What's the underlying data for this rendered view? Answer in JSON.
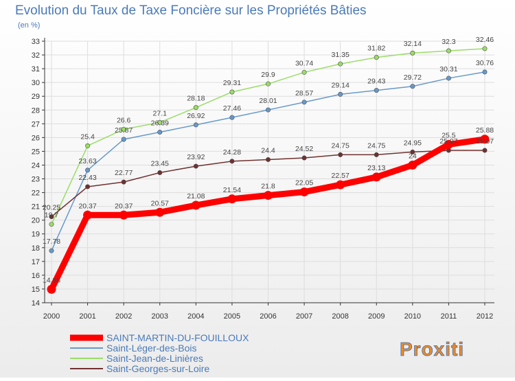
{
  "colors": {
    "title": "#4a7ab8",
    "axis": "#333333",
    "grid": "#dddddd",
    "logo_accent": "#f08a1e"
  },
  "logo": {
    "text": "Proxiti"
  },
  "chart_data": {
    "type": "line",
    "title": "Evolution du Taux de Taxe Foncière sur les Propriétés Bâties",
    "subtitle": "(en %)",
    "x": [
      2000,
      2001,
      2002,
      2003,
      2004,
      2005,
      2006,
      2007,
      2008,
      2009,
      2010,
      2011,
      2012
    ],
    "ylim": [
      14,
      33
    ],
    "yticks": [
      14,
      15,
      16,
      17,
      18,
      19,
      20,
      21,
      22,
      23,
      24,
      25,
      26,
      27,
      28,
      29,
      30,
      31,
      32,
      33
    ],
    "grid": true,
    "legend_position": "bottom-left",
    "series": [
      {
        "name": "SAINT-MARTIN-DU-FOUILLOUX",
        "color": "#ff0000",
        "emphasis": true,
        "values": [
          14.98,
          20.37,
          20.37,
          20.57,
          21.08,
          21.54,
          21.8,
          22.05,
          22.57,
          23.13,
          24,
          25.5,
          25.88
        ],
        "labels": [
          "14.98",
          "20.37",
          "20.37",
          "20.57",
          "21.08",
          "21.54",
          "21.8",
          "22.05",
          "22.57",
          "23.13",
          "24",
          "25.5",
          "25.88"
        ]
      },
      {
        "name": "Saint-Léger-des-Bois",
        "color": "#6699cc",
        "values": [
          17.78,
          23.63,
          25.87,
          26.39,
          26.92,
          27.46,
          28.01,
          28.57,
          29.14,
          29.43,
          29.72,
          30.31,
          30.76
        ],
        "labels": [
          "17.78",
          "23.63",
          "25.87",
          "26.39",
          "26.92",
          "27.46",
          "28.01",
          "28.57",
          "29.14",
          "29.43",
          "29.72",
          "30.31",
          "30.76"
        ]
      },
      {
        "name": "Saint-Jean-de-Linières",
        "color": "#99dd66",
        "values": [
          19.7,
          25.4,
          26.6,
          27.1,
          28.18,
          29.31,
          29.9,
          30.74,
          31.35,
          31.82,
          32.14,
          32.3,
          32.46
        ],
        "labels": [
          "19.7",
          "25.4",
          "26.6",
          "27.1",
          "28.18",
          "29.31",
          "29.9",
          "30.74",
          "31.35",
          "31.82",
          "32.14",
          "32.3",
          "32.46"
        ]
      },
      {
        "name": "Saint-Georges-sur-Loire",
        "color": "#703030",
        "values": [
          20.25,
          22.43,
          22.77,
          23.45,
          23.92,
          24.28,
          24.4,
          24.52,
          24.75,
          24.75,
          24.95,
          25.07,
          25.07
        ],
        "labels": [
          "20.25",
          "22.43",
          "22.77",
          "23.45",
          "23.92",
          "24.28",
          "24.4",
          "24.52",
          "24.75",
          "24.75",
          "24.95",
          "25.07",
          "25.07"
        ]
      }
    ]
  }
}
